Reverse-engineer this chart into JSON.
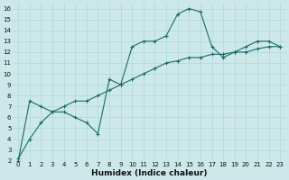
{
  "xlabel": "Humidex (Indice chaleur)",
  "bg_color": "#cde8e8",
  "grid_color": "#b0d8d8",
  "line_color": "#1a6b6b",
  "xlim": [
    -0.5,
    23.5
  ],
  "ylim": [
    2,
    16.5
  ],
  "xticks": [
    0,
    1,
    2,
    3,
    4,
    5,
    6,
    7,
    8,
    9,
    10,
    11,
    12,
    13,
    14,
    15,
    16,
    17,
    18,
    19,
    20,
    21,
    22,
    23
  ],
  "yticks": [
    2,
    3,
    4,
    5,
    6,
    7,
    8,
    9,
    10,
    11,
    12,
    13,
    14,
    15,
    16
  ],
  "line1_x": [
    0,
    1,
    2,
    3,
    4,
    5,
    6,
    7,
    8,
    9,
    10,
    11,
    12,
    13,
    14,
    15,
    16,
    17,
    18,
    19,
    20,
    21,
    22,
    23
  ],
  "line1_y": [
    2.0,
    7.5,
    7.0,
    6.5,
    6.5,
    6.0,
    5.5,
    4.5,
    9.5,
    9.0,
    12.5,
    13.0,
    13.0,
    13.5,
    15.5,
    16.0,
    15.7,
    12.5,
    11.5,
    12.0,
    12.5,
    13.0,
    13.0,
    12.5
  ],
  "line2_x": [
    0,
    1,
    2,
    3,
    4,
    5,
    6,
    7,
    8,
    9,
    10,
    11,
    12,
    13,
    14,
    15,
    16,
    17,
    18,
    19,
    20,
    21,
    22,
    23
  ],
  "line2_y": [
    2.2,
    4.0,
    5.5,
    6.5,
    7.0,
    7.5,
    7.5,
    8.0,
    8.5,
    9.0,
    9.5,
    10.0,
    10.5,
    11.0,
    11.2,
    11.5,
    11.5,
    11.8,
    11.8,
    12.0,
    12.0,
    12.3,
    12.5,
    12.5
  ],
  "marker": "+",
  "marker_size": 3,
  "line_width": 0.8,
  "tick_fontsize": 5,
  "xlabel_fontsize": 6.5
}
